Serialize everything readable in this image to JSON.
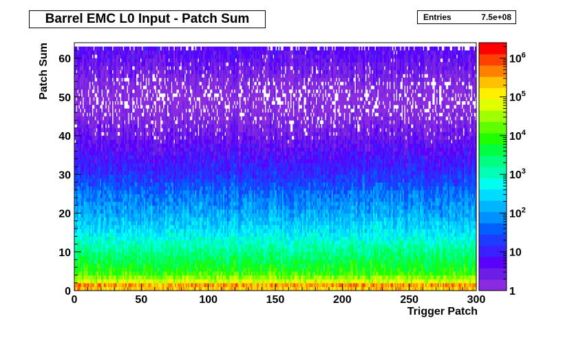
{
  "chart_data": {
    "type": "heatmap",
    "title": "Barrel EMC L0 Input - Patch Sum",
    "xlabel": "Trigger Patch",
    "ylabel": "Patch Sum",
    "xlim": [
      0,
      300
    ],
    "ylim": [
      0,
      64
    ],
    "x_ticks": [
      "0",
      "50",
      "100",
      "150",
      "200",
      "250",
      "300"
    ],
    "y_ticks": [
      "0",
      "10",
      "20",
      "30",
      "40",
      "50",
      "60"
    ],
    "color_scale": "log",
    "z_range": [
      1,
      2500000
    ],
    "colorbar_ticks": [
      {
        "value": 1,
        "label": "1"
      },
      {
        "value": 10,
        "label": "10"
      },
      {
        "value": 100,
        "label": "10^2"
      },
      {
        "value": 1000,
        "label": "10^3"
      },
      {
        "value": 10000,
        "label": "10^4"
      },
      {
        "value": 100000,
        "label": "10^5"
      },
      {
        "value": 1000000,
        "label": "10^6"
      }
    ],
    "palette": [
      "#8a2be2",
      "#6a1ee6",
      "#5a00ff",
      "#3a20ff",
      "#1e3cff",
      "#0060ff",
      "#0090ff",
      "#00b4ff",
      "#00dcff",
      "#00fff0",
      "#00ffb4",
      "#00ff80",
      "#00ff40",
      "#20ff00",
      "#60ff00",
      "#a0ff00",
      "#e0ff00",
      "#fff000",
      "#ffc000",
      "#ff8000",
      "#ff4000",
      "#ff0000"
    ],
    "stats": {
      "label": "Entries",
      "value": "7.5e+08"
    },
    "profile_by_patch_sum": [
      {
        "y": 0,
        "z": 30000
      },
      {
        "y": 1,
        "z": 1500000
      },
      {
        "y": 2,
        "z": 80000
      },
      {
        "y": 5,
        "z": 8000
      },
      {
        "y": 10,
        "z": 2000
      },
      {
        "y": 15,
        "z": 400
      },
      {
        "y": 20,
        "z": 120
      },
      {
        "y": 25,
        "z": 50
      },
      {
        "y": 30,
        "z": 15
      },
      {
        "y": 35,
        "z": 6
      },
      {
        "y": 40,
        "z": 3
      },
      {
        "y": 45,
        "z": 1.5
      },
      {
        "y": 50,
        "z": 1
      },
      {
        "y": 62,
        "z": 5
      }
    ]
  }
}
